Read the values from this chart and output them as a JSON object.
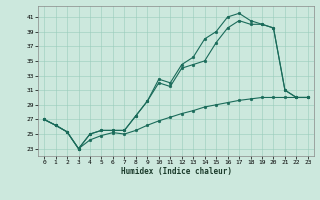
{
  "xlabel": "Humidex (Indice chaleur)",
  "background_color": "#cce8dd",
  "grid_color": "#99ccbb",
  "line_color": "#1a6b5a",
  "xlim": [
    -0.5,
    23.5
  ],
  "ylim": [
    22.0,
    42.5
  ],
  "xticks": [
    0,
    1,
    2,
    3,
    4,
    5,
    6,
    7,
    8,
    9,
    10,
    11,
    12,
    13,
    14,
    15,
    16,
    17,
    18,
    19,
    20,
    21,
    22,
    23
  ],
  "yticks": [
    23,
    25,
    27,
    29,
    31,
    33,
    35,
    37,
    39,
    41
  ],
  "lower_x": [
    0,
    1,
    2,
    3,
    4,
    5,
    6,
    7,
    8,
    9,
    10,
    11,
    12,
    13,
    14,
    15,
    16,
    17,
    18,
    19,
    20,
    21,
    22,
    23
  ],
  "lower_y": [
    27,
    26.2,
    25.3,
    23.0,
    24.2,
    24.8,
    25.2,
    25.0,
    25.5,
    26.2,
    26.8,
    27.3,
    27.8,
    28.2,
    28.7,
    29.0,
    29.3,
    29.6,
    29.8,
    30.0,
    30.0,
    30.0,
    30.0,
    30.0
  ],
  "mid_x": [
    0,
    1,
    2,
    3,
    4,
    5,
    6,
    7,
    8,
    9,
    10,
    11,
    12,
    13,
    14,
    15,
    16,
    17,
    18,
    19,
    20,
    21,
    22,
    23
  ],
  "mid_y": [
    27,
    26.2,
    25.3,
    23.0,
    25.0,
    25.5,
    25.5,
    25.5,
    27.5,
    29.5,
    32.0,
    31.5,
    34.0,
    34.5,
    35.0,
    37.5,
    39.5,
    40.5,
    40.0,
    40.0,
    39.5,
    31.0,
    30.0,
    30.0
  ],
  "upper_x": [
    0,
    1,
    2,
    3,
    4,
    5,
    6,
    7,
    8,
    9,
    10,
    11,
    12,
    13,
    14,
    15,
    16,
    17,
    18,
    19,
    20,
    21,
    22,
    23
  ],
  "upper_y": [
    27,
    26.2,
    25.3,
    23.0,
    25.0,
    25.5,
    25.5,
    25.5,
    27.5,
    29.5,
    32.5,
    32.0,
    34.5,
    35.5,
    38.0,
    39.0,
    41.0,
    41.5,
    40.5,
    40.0,
    39.5,
    31.0,
    30.0,
    30.0
  ],
  "figsize": [
    3.2,
    2.0
  ],
  "dpi": 100
}
